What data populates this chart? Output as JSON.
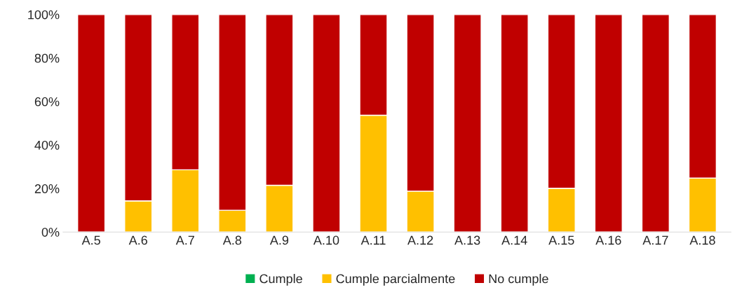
{
  "chart_data": {
    "type": "bar",
    "stacked": true,
    "categories": [
      "A.5",
      "A.6",
      "A.7",
      "A.8",
      "A.9",
      "A.10",
      "A.11",
      "A.12",
      "A.13",
      "A.14",
      "A.15",
      "A.16",
      "A.17",
      "A.18"
    ],
    "series": [
      {
        "name": "Cumple",
        "color": "#00b050",
        "values": [
          0,
          0,
          0,
          0,
          0,
          0,
          0,
          0,
          0,
          0,
          0,
          0,
          0,
          0
        ]
      },
      {
        "name": "Cumple parcialmente",
        "color": "#ffc000",
        "values": [
          0,
          14.3,
          28.6,
          10,
          21.5,
          0,
          53.7,
          18.8,
          0,
          0,
          20.1,
          0,
          0,
          24.8
        ]
      },
      {
        "name": "No cumple",
        "color": "#c00000",
        "values": [
          100,
          85.7,
          71.4,
          90,
          78.5,
          100,
          46.3,
          81.2,
          100,
          100,
          79.9,
          100,
          100,
          75.2
        ]
      }
    ],
    "ylim": [
      0,
      100
    ],
    "yticks": [
      {
        "value": 0,
        "label": "0%"
      },
      {
        "value": 20,
        "label": "20%"
      },
      {
        "value": 40,
        "label": "40%"
      },
      {
        "value": 60,
        "label": "60%"
      },
      {
        "value": 80,
        "label": "80%"
      },
      {
        "value": 100,
        "label": "100%"
      }
    ],
    "legend": "bottom",
    "grid": false
  }
}
